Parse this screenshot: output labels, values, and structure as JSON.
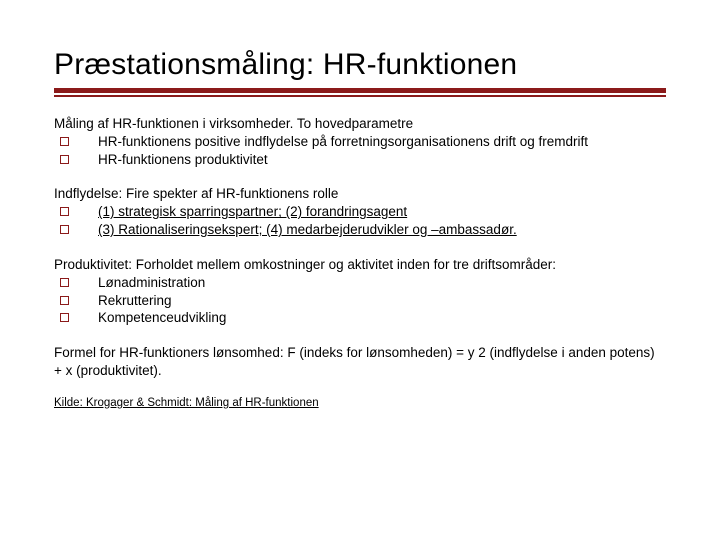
{
  "title": "Præstationsmåling: HR-funktionen",
  "accent_color": "#8b1a1a",
  "sections": [
    {
      "lead": "Måling af HR-funktionen i virksomheder. To hovedparametre",
      "items": [
        "HR-funktionens positive indflydelse på forretningsorganisationens drift og fremdrift",
        "HR-funktionens produktivitet"
      ]
    },
    {
      "lead": "Indflydelse: Fire spekter af HR-funktionens rolle",
      "items_underlined": true,
      "items": [
        "(1) strategisk sparringspartner; (2) forandringsagent",
        "(3) Rationaliseringsekspert; (4) medarbejderudvikler og –ambassadør."
      ]
    },
    {
      "lead": "Produktivitet: Forholdet mellem omkostninger og aktivitet inden for tre driftsområder:",
      "items": [
        "Lønadministration",
        "Rekruttering",
        "Kompetenceudvikling"
      ]
    }
  ],
  "formula": "Formel for HR-funktioners lønsomhed: F (indeks for lønsomheden) = y 2 (indflydelse i anden potens) + x (produktivitet).",
  "source": "Kilde: Krogager & Schmidt: Måling af HR-funktionen"
}
